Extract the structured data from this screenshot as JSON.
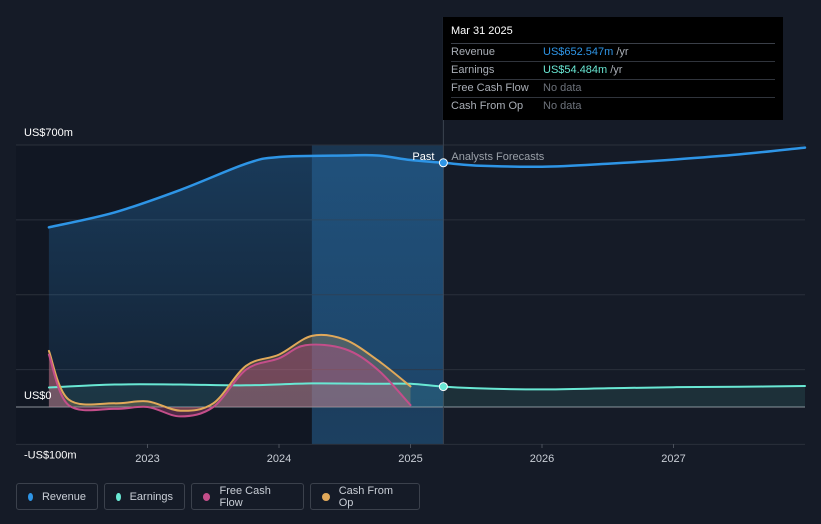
{
  "chart_data": {
    "type": "line",
    "y_axis": {
      "top_label": "US$700m",
      "zero_label": "US$0",
      "bottom_label": "-US$100m",
      "ylim": [
        -100,
        700
      ]
    },
    "x_ticks": [
      "2023",
      "2024",
      "2025",
      "2026",
      "2027"
    ],
    "divider": {
      "past_label": "Past",
      "forecast_label": "Analysts Forecasts",
      "date": "2025.25"
    },
    "series": [
      {
        "name": "Revenue",
        "color": "#2e95e6",
        "points": [
          [
            2022.25,
            480
          ],
          [
            2022.75,
            520
          ],
          [
            2023.25,
            580
          ],
          [
            2023.75,
            650
          ],
          [
            2024.0,
            668
          ],
          [
            2024.5,
            672
          ],
          [
            2024.75,
            672
          ],
          [
            2025.0,
            660
          ],
          [
            2025.25,
            652.547
          ],
          [
            2025.5,
            645
          ],
          [
            2026.0,
            642
          ],
          [
            2026.5,
            650
          ],
          [
            2027.0,
            661
          ],
          [
            2027.5,
            675
          ],
          [
            2028.0,
            693
          ]
        ]
      },
      {
        "name": "Earnings",
        "color": "#69e8d4",
        "points": [
          [
            2022.25,
            52
          ],
          [
            2022.75,
            60
          ],
          [
            2023.25,
            60
          ],
          [
            2023.75,
            58
          ],
          [
            2024.25,
            63
          ],
          [
            2024.75,
            62
          ],
          [
            2025.0,
            62
          ],
          [
            2025.25,
            54.484
          ],
          [
            2025.5,
            50
          ],
          [
            2026.0,
            47
          ],
          [
            2026.5,
            50
          ],
          [
            2027.0,
            53
          ],
          [
            2027.5,
            54
          ],
          [
            2028.0,
            56
          ]
        ]
      },
      {
        "name": "Free Cash Flow",
        "color": "#c44e8a",
        "points": [
          [
            2022.25,
            140
          ],
          [
            2022.4,
            5
          ],
          [
            2022.75,
            -5
          ],
          [
            2023.0,
            0
          ],
          [
            2023.25,
            -25
          ],
          [
            2023.5,
            0
          ],
          [
            2023.75,
            100
          ],
          [
            2024.0,
            130
          ],
          [
            2024.2,
            165
          ],
          [
            2024.5,
            155
          ],
          [
            2024.75,
            100
          ],
          [
            2025.0,
            5
          ]
        ]
      },
      {
        "name": "Cash From Op",
        "color": "#e1a95a",
        "points": [
          [
            2022.25,
            150
          ],
          [
            2022.4,
            20
          ],
          [
            2022.75,
            10
          ],
          [
            2023.0,
            15
          ],
          [
            2023.25,
            -10
          ],
          [
            2023.5,
            10
          ],
          [
            2023.75,
            110
          ],
          [
            2024.0,
            140
          ],
          [
            2024.25,
            190
          ],
          [
            2024.5,
            180
          ],
          [
            2024.75,
            125
          ],
          [
            2025.0,
            55
          ]
        ]
      }
    ]
  },
  "tooltip": {
    "date": "Mar 31 2025",
    "rows": [
      {
        "label": "Revenue",
        "value": "US$652.547m",
        "unit": "/yr"
      },
      {
        "label": "Earnings",
        "value": "US$54.484m",
        "unit": "/yr"
      },
      {
        "label": "Free Cash Flow",
        "value": "No data",
        "unit": ""
      },
      {
        "label": "Cash From Op",
        "value": "No data",
        "unit": ""
      }
    ]
  },
  "legend": [
    {
      "label": "Revenue",
      "color": "#2e95e6"
    },
    {
      "label": "Earnings",
      "color": "#69e8d4"
    },
    {
      "label": "Free Cash Flow",
      "color": "#c44e8a"
    },
    {
      "label": "Cash From Op",
      "color": "#e1a95a"
    }
  ]
}
